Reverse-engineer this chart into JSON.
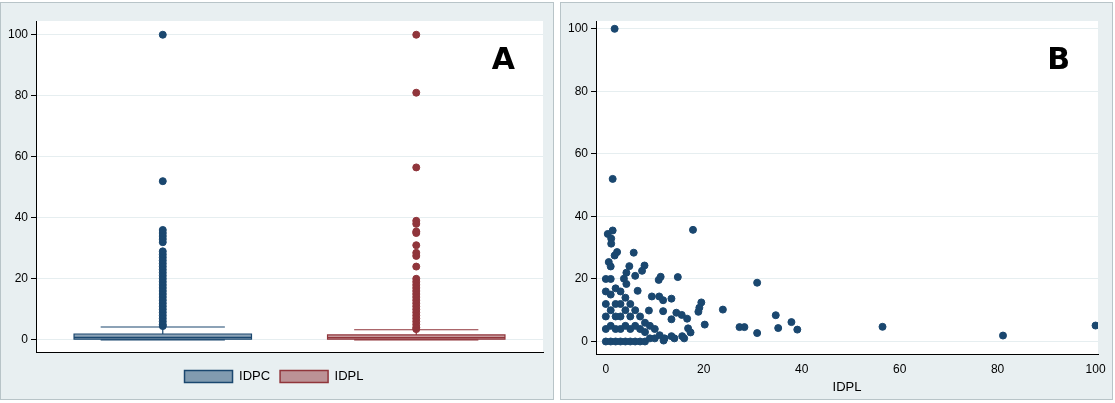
{
  "chart_data": [
    {
      "type": "box",
      "categories": [
        null
      ],
      "series": [
        {
          "name": "IDPC",
          "color": "#1a476f",
          "boxes": [
            {
              "low": 0,
              "q1": 0.2,
              "median": 0.8,
              "q3": 1.9,
              "high": 4.2,
              "outliers": [
                4.5,
                5,
                6,
                7,
                8,
                9,
                10,
                11,
                12,
                13,
                14,
                15,
                16,
                17,
                18,
                19,
                20,
                21,
                22,
                23,
                24,
                25,
                26,
                27,
                28,
                29,
                32,
                33,
                34,
                35,
                36,
                52,
                100
              ]
            }
          ]
        },
        {
          "name": "IDPL",
          "color": "#90353b",
          "boxes": [
            {
              "low": 0,
              "q1": 0.2,
              "median": 0.7,
              "q3": 1.6,
              "high": 3.3,
              "outliers": [
                3.5,
                4,
                5,
                6,
                7,
                8,
                9,
                10,
                11,
                12,
                13,
                14,
                15,
                16,
                17,
                18,
                19,
                20,
                24,
                27.5,
                28.5,
                31,
                35,
                35.5,
                38,
                39,
                56.5,
                81,
                100
              ]
            }
          ]
        }
      ],
      "ylim": [
        -4,
        104.5
      ],
      "yticks": [
        0,
        20,
        40,
        60,
        80,
        100
      ],
      "grid": "y",
      "legend": "bottom",
      "tick_labels": "y",
      "annotations": [
        "A"
      ]
    },
    {
      "type": "scatter",
      "color": "#1a476f",
      "marker": "circle",
      "xlabel": "IDPL",
      "x": [
        1.8,
        1.4,
        17.8,
        1.4,
        0.4,
        1.1,
        1.1,
        2.3,
        5.7,
        1.8,
        7.9,
        4.8,
        0.6,
        7.4,
        4.2,
        11.2,
        14.7,
        6,
        10.8,
        30.9,
        3.7,
        9.4,
        13.4,
        10.9,
        11.7,
        19.5,
        19.1,
        18.9,
        23.9,
        14.4,
        15.5,
        11.7,
        16.6,
        34.7,
        37.9,
        20.2,
        27.3,
        28.3,
        35.2,
        39.1,
        30.9,
        56.5,
        81.1,
        100,
        16.8,
        17.3,
        15.6,
        13.4,
        11.8,
        8.8,
        13.4,
        6.5,
        4.2,
        0,
        0,
        0,
        0,
        0,
        0,
        1,
        1,
        1,
        1,
        1,
        1,
        2,
        2,
        2,
        2,
        2,
        3,
        3,
        3,
        3,
        3,
        4,
        4,
        4,
        4,
        5,
        5,
        5,
        5,
        6,
        6,
        6,
        7,
        7,
        7,
        8,
        8,
        8,
        9,
        9,
        10,
        10,
        11,
        12,
        14,
        16
      ],
      "values": [
        100,
        52,
        35.7,
        35.5,
        34.4,
        32.9,
        31.3,
        28.6,
        28.4,
        27.5,
        24.3,
        24.1,
        25.4,
        22.6,
        22,
        20.7,
        20.6,
        21,
        19.7,
        18.8,
        20.1,
        14.4,
        13.7,
        14.4,
        13.2,
        12.5,
        10.8,
        9.5,
        10.2,
        9.2,
        8.5,
        9.7,
        7.3,
        8.4,
        6.2,
        5.4,
        4.6,
        4.6,
        4.3,
        3.8,
        2.7,
        4.7,
        1.9,
        5.1,
        4.2,
        2.9,
        1.7,
        1.7,
        0.3,
        9.9,
        7.1,
        16.2,
        18.4,
        0,
        4,
        8,
        12,
        16,
        20,
        0,
        5,
        10,
        15,
        20,
        24,
        0,
        4,
        8,
        12,
        17,
        0,
        4,
        8,
        12,
        16,
        0,
        5,
        10,
        14,
        0,
        4,
        8,
        12,
        0,
        5,
        10,
        0,
        4,
        8,
        0,
        3,
        6,
        1,
        5,
        1,
        4,
        2,
        1,
        1,
        1
      ],
      "xlim": [
        -2,
        100.5
      ],
      "xticks": [
        0,
        20,
        40,
        60,
        80,
        100
      ],
      "ylim": [
        -4,
        102.5
      ],
      "yticks": [
        0,
        20,
        40,
        60,
        80,
        100
      ],
      "grid": "y",
      "annotations": [
        "B"
      ]
    }
  ]
}
